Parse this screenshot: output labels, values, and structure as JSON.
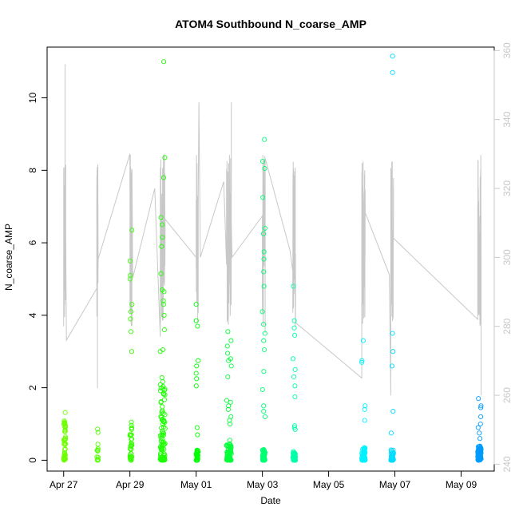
{
  "chart_data": {
    "type": "scatter",
    "title": "ATOM4 Southbound N_coarse_AMP",
    "xlabel": "Date",
    "ylabel": "N_coarse_AMP",
    "x_ticks": [
      "Apr 27",
      "Apr 29",
      "May 01",
      "May 03",
      "May 05",
      "May 07",
      "May 09"
    ],
    "xlim": [
      "2016-04-26T12:00",
      "2016-05-10T00:00"
    ],
    "ylim": [
      -0.3,
      11.4
    ],
    "y_ticks": [
      0,
      2,
      4,
      6,
      8,
      10
    ],
    "y2lim": [
      238,
      361
    ],
    "y2_ticks": [
      240,
      260,
      280,
      300,
      320,
      340,
      360
    ],
    "grid": false,
    "color_scale": [
      "#7cff00",
      "#00ff00",
      "#00ffff",
      "#0090ff"
    ],
    "colors": {
      "line": "#c8c8c8",
      "right_axis": "#c8c8c8",
      "frame": "#000000"
    },
    "bursts": [
      {
        "t": "2016-04-27T00:00",
        "dur_h": 1.5,
        "n": 50,
        "base_max": 1.4,
        "extras": [
          1.0,
          0.8
        ]
      },
      {
        "t": "2016-04-28T00:00",
        "dur_h": 1.0,
        "n": 12,
        "base_max": 0.95,
        "extras": []
      },
      {
        "t": "2016-04-29T00:00",
        "dur_h": 1.5,
        "n": 35,
        "base_max": 1.0,
        "extras": [
          6.35,
          5.5,
          5.1,
          5.0,
          4.3,
          4.1,
          3.9,
          3.55,
          3.0,
          1.05,
          0.85
        ]
      },
      {
        "t": "2016-04-29T22:00",
        "dur_h": 3.5,
        "n": 90,
        "base_max": 2.3,
        "extras": [
          11.0,
          8.35,
          7.8,
          6.7,
          6.5,
          6.15,
          5.9,
          5.15,
          4.7,
          4.65,
          4.4,
          4.3,
          4.0,
          3.6,
          3.05,
          3.0
        ]
      },
      {
        "t": "2016-05-01T00:00",
        "dur_h": 1.5,
        "n": 30,
        "base_max": 0.3,
        "extras": [
          4.3,
          3.85,
          3.7,
          2.75,
          2.6,
          2.4,
          2.25,
          2.05,
          0.9,
          0.7
        ]
      },
      {
        "t": "2016-05-01T22:00",
        "dur_h": 3.5,
        "n": 60,
        "base_max": 0.5,
        "extras": [
          3.55,
          3.3,
          3.15,
          2.95,
          2.8,
          2.75,
          2.6,
          2.3,
          1.65,
          1.6,
          1.5,
          1.4,
          1.2,
          1.1,
          1.0,
          0.55
        ]
      },
      {
        "t": "2016-05-03T00:00",
        "dur_h": 2.0,
        "n": 50,
        "base_max": 0.3,
        "extras": [
          8.85,
          8.25,
          8.05,
          7.25,
          6.4,
          6.25,
          5.75,
          5.55,
          5.2,
          4.8,
          4.1,
          3.75,
          3.5,
          3.3,
          3.05,
          2.45,
          1.95,
          1.5,
          1.35,
          1.2
        ]
      },
      {
        "t": "2016-05-03T22:00",
        "dur_h": 2.0,
        "n": 40,
        "base_max": 0.25,
        "extras": [
          4.8,
          3.85,
          3.65,
          3.45,
          2.8,
          2.5,
          2.3,
          2.05,
          1.75,
          0.95,
          0.9,
          0.85
        ]
      },
      {
        "t": "2016-05-06T00:00",
        "dur_h": 2.5,
        "n": 60,
        "base_max": 0.35,
        "extras": [
          3.3,
          2.75,
          2.7,
          1.5,
          1.4,
          1.1
        ]
      },
      {
        "t": "2016-05-06T21:00",
        "dur_h": 2.0,
        "n": 45,
        "base_max": 0.3,
        "extras": [
          11.15,
          10.7,
          3.5,
          3.0,
          2.6,
          1.35,
          0.75
        ]
      },
      {
        "t": "2016-05-09T12:00",
        "dur_h": 2.5,
        "n": 90,
        "base_max": 0.4,
        "extras": [
          1.7,
          1.5,
          1.45,
          1.2,
          1.0,
          0.9,
          0.75,
          0.6
        ]
      }
    ],
    "secondary_series": {
      "name": "",
      "points": [
        {
          "t": "2016-04-27T00:00",
          "y": 290
        },
        {
          "t": "2016-04-27T01:00",
          "y": 356
        },
        {
          "t": "2016-04-27T02:00",
          "y": 276
        },
        {
          "t": "2016-04-28T00:00",
          "y": 291
        },
        {
          "t": "2016-04-28T00:30",
          "y": 262
        },
        {
          "t": "2016-04-29T00:00",
          "y": 330
        },
        {
          "t": "2016-04-29T01:00",
          "y": 290
        },
        {
          "t": "2016-04-29T02:00",
          "y": 294
        },
        {
          "t": "2016-04-29T18:00",
          "y": 320
        },
        {
          "t": "2016-04-29T22:00",
          "y": 277
        },
        {
          "t": "2016-04-30T01:00",
          "y": 330
        },
        {
          "t": "2016-05-01T00:00",
          "y": 300
        },
        {
          "t": "2016-05-01T02:00",
          "y": 345
        },
        {
          "t": "2016-05-01T03:00",
          "y": 300
        },
        {
          "t": "2016-05-01T20:00",
          "y": 322
        },
        {
          "t": "2016-05-01T22:00",
          "y": 298
        },
        {
          "t": "2016-05-02T01:30",
          "y": 345
        },
        {
          "t": "2016-05-02T02:00",
          "y": 300
        },
        {
          "t": "2016-05-03T00:00",
          "y": 312
        },
        {
          "t": "2016-05-03T02:00",
          "y": 278
        },
        {
          "t": "2016-05-03T20:00",
          "y": 302
        },
        {
          "t": "2016-05-03T22:00",
          "y": 296
        },
        {
          "t": "2016-05-04T00:00",
          "y": 301
        },
        {
          "t": "2016-05-06T00:00",
          "y": 265
        },
        {
          "t": "2016-05-06T02:00",
          "y": 324
        },
        {
          "t": "2016-05-06T20:00",
          "y": 295
        },
        {
          "t": "2016-05-06T21:00",
          "y": 260
        },
        {
          "t": "2016-05-06T23:00",
          "y": 323
        },
        {
          "t": "2016-05-09T12:00",
          "y": 282
        },
        {
          "t": "2016-05-09T14:30",
          "y": 260
        }
      ]
    }
  }
}
